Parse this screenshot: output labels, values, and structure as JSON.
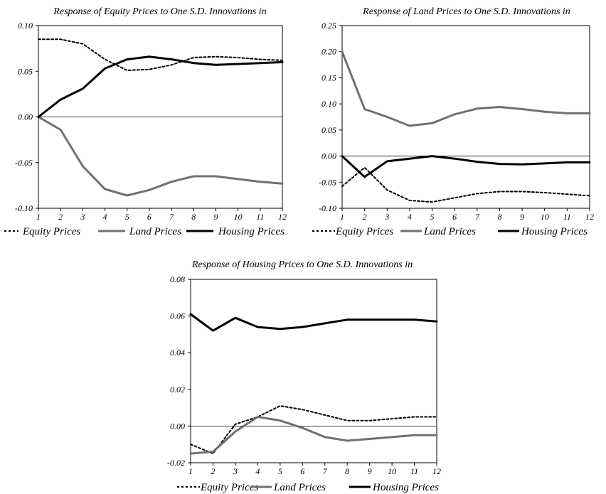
{
  "styles": {
    "equity": {
      "color": "#000000",
      "dash": "3,3",
      "width": 2
    },
    "land": {
      "color": "#707070",
      "dash": "",
      "width": 3
    },
    "housing": {
      "color": "#000000",
      "dash": "",
      "width": 3
    }
  },
  "chart_data": [
    {
      "type": "line",
      "title": "Response of Equity Prices to One S.D. Innovations in",
      "xlabel": "",
      "ylabel": "",
      "x": [
        1,
        2,
        3,
        4,
        5,
        6,
        7,
        8,
        9,
        10,
        11,
        12
      ],
      "ylim": [
        -0.1,
        0.1
      ],
      "yticks": [
        "0.10",
        "0.05",
        "0.00",
        "-0.05",
        "-0.10"
      ],
      "ytick_values": [
        0.1,
        0.05,
        0.0,
        -0.05,
        -0.1
      ],
      "legend_position": "bottom",
      "series": [
        {
          "name": "Equity Prices",
          "style": "equity",
          "values": [
            0.085,
            0.085,
            0.08,
            0.063,
            0.051,
            0.052,
            0.057,
            0.065,
            0.066,
            0.065,
            0.063,
            0.062
          ]
        },
        {
          "name": "Land Prices",
          "style": "land",
          "values": [
            0.0,
            -0.014,
            -0.054,
            -0.079,
            -0.086,
            -0.08,
            -0.071,
            -0.065,
            -0.065,
            -0.068,
            -0.071,
            -0.073
          ]
        },
        {
          "name": "Housing Prices",
          "style": "housing",
          "values": [
            0.0,
            0.019,
            0.031,
            0.053,
            0.063,
            0.066,
            0.063,
            0.059,
            0.057,
            0.058,
            0.059,
            0.06
          ]
        }
      ]
    },
    {
      "type": "line",
      "title": "Response of  Land Prices to One S.D. Innovations in",
      "xlabel": "",
      "ylabel": "",
      "x": [
        1,
        2,
        3,
        4,
        5,
        6,
        7,
        8,
        9,
        10,
        11,
        12
      ],
      "ylim": [
        -0.1,
        0.25
      ],
      "yticks": [
        "0.25",
        "0.20",
        "0.15",
        "0.10",
        "0.05",
        "0.00",
        "-0.05",
        "-0.10"
      ],
      "ytick_values": [
        0.25,
        0.2,
        0.15,
        0.1,
        0.05,
        0.0,
        -0.05,
        -0.1
      ],
      "legend_position": "bottom",
      "series": [
        {
          "name": "Equity Prices",
          "style": "equity",
          "values": [
            -0.058,
            -0.022,
            -0.065,
            -0.085,
            -0.088,
            -0.08,
            -0.072,
            -0.068,
            -0.068,
            -0.07,
            -0.073,
            -0.076
          ]
        },
        {
          "name": "Land Prices",
          "style": "land",
          "values": [
            0.2,
            0.09,
            0.075,
            0.058,
            0.063,
            0.08,
            0.091,
            0.094,
            0.09,
            0.085,
            0.082,
            0.082
          ]
        },
        {
          "name": "Housing Prices",
          "style": "housing",
          "values": [
            0.0,
            -0.04,
            -0.01,
            -0.005,
            0.0,
            -0.005,
            -0.011,
            -0.015,
            -0.016,
            -0.014,
            -0.012,
            -0.012
          ]
        }
      ]
    },
    {
      "type": "line",
      "title": "Response of Housing Prices to One S.D. Innovations in",
      "xlabel": "",
      "ylabel": "",
      "x": [
        1,
        2,
        3,
        4,
        5,
        6,
        7,
        8,
        9,
        10,
        11,
        12
      ],
      "ylim": [
        -0.02,
        0.08
      ],
      "yticks": [
        "0.08",
        "0.06",
        "0.04",
        "0.02",
        "0.00",
        "-0.02"
      ],
      "ytick_values": [
        0.08,
        0.06,
        0.04,
        0.02,
        0.0,
        -0.02
      ],
      "legend_position": "bottom",
      "series": [
        {
          "name": "Equity Prices",
          "style": "equity",
          "values": [
            -0.01,
            -0.015,
            0.001,
            0.005,
            0.011,
            0.009,
            0.006,
            0.003,
            0.003,
            0.004,
            0.005,
            0.005
          ]
        },
        {
          "name": "Land Prices",
          "style": "land",
          "values": [
            -0.015,
            -0.014,
            -0.003,
            0.005,
            0.003,
            -0.001,
            -0.006,
            -0.008,
            -0.007,
            -0.006,
            -0.005,
            -0.005
          ]
        },
        {
          "name": "Housing Prices",
          "style": "housing",
          "values": [
            0.061,
            0.052,
            0.059,
            0.054,
            0.053,
            0.054,
            0.056,
            0.058,
            0.058,
            0.058,
            0.058,
            0.057
          ]
        }
      ]
    }
  ]
}
